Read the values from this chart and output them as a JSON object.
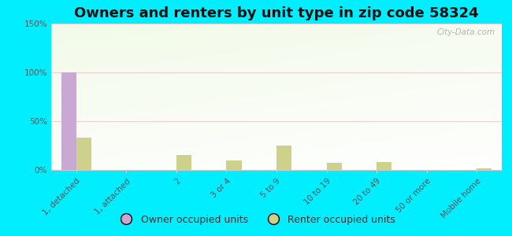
{
  "title": "Owners and renters by unit type in zip code 58324",
  "categories": [
    "1, detached",
    "1, attached",
    "2",
    "3 or 4",
    "5 to 9",
    "10 to 19",
    "20 to 49",
    "50 or more",
    "Mobile home"
  ],
  "owner_values": [
    100,
    0,
    0,
    0,
    0,
    0,
    0,
    0,
    0
  ],
  "renter_values": [
    33,
    0,
    15,
    10,
    25,
    7,
    8,
    0,
    2
  ],
  "owner_color": "#c9a8d4",
  "renter_color": "#cdd18a",
  "plot_bg_color": "#e8f0d8",
  "outer_bg": "#00eeff",
  "ylim": [
    0,
    150
  ],
  "yticks": [
    0,
    50,
    100,
    150
  ],
  "ytick_labels": [
    "0%",
    "50%",
    "100%",
    "150%"
  ],
  "bar_width": 0.3,
  "title_fontsize": 13,
  "tick_fontsize": 7.5,
  "legend_fontsize": 9,
  "watermark": "City-Data.com",
  "grid_color": "#f0d0d0",
  "spine_color": "#cccccc"
}
